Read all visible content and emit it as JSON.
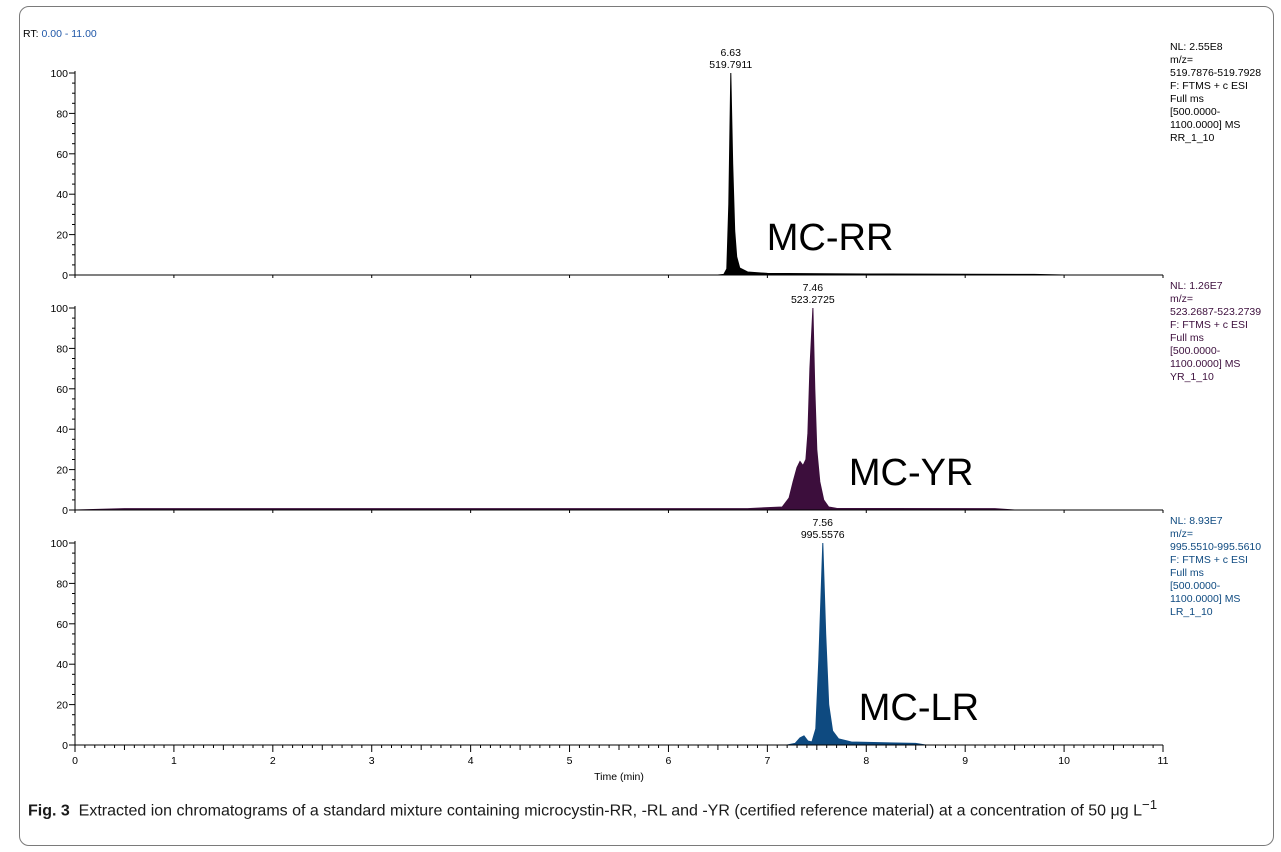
{
  "chart_data": {
    "type": "area",
    "rt_label": "RT:",
    "rt_range": "0.00 - 11.00",
    "xlabel": "Time (min)",
    "xlim": [
      0,
      11
    ],
    "x_ticks": [
      "0",
      "1",
      "2",
      "3",
      "4",
      "5",
      "6",
      "7",
      "8",
      "9",
      "10",
      "11"
    ],
    "ylim": [
      0,
      100
    ],
    "y_ticks": [
      "0",
      "20",
      "40",
      "60",
      "80",
      "100"
    ],
    "panels": [
      {
        "label": "MC-RR",
        "color": "#000000",
        "peak_rt": "6.63",
        "peak_mz": "519.7911",
        "info": [
          "NL: 2.55E8",
          "m/z=",
          "519.7876-519.7928",
          "F: FTMS + c ESI",
          "Full ms",
          "[500.0000-",
          "1100.0000]  MS",
          "RR_1_10"
        ],
        "trace": [
          [
            0,
            0
          ],
          [
            6.5,
            0
          ],
          [
            6.56,
            0.3
          ],
          [
            6.59,
            3
          ],
          [
            6.61,
            35
          ],
          [
            6.63,
            100
          ],
          [
            6.65,
            55
          ],
          [
            6.67,
            22
          ],
          [
            6.69,
            9
          ],
          [
            6.72,
            3.5
          ],
          [
            6.8,
            1.5
          ],
          [
            7.0,
            0.8
          ],
          [
            8.0,
            0.5
          ],
          [
            9.0,
            0.4
          ],
          [
            9.7,
            0.3
          ],
          [
            10.0,
            0
          ],
          [
            11,
            0
          ]
        ]
      },
      {
        "label": "MC-YR",
        "color": "#3c0e3c",
        "peak_rt": "7.46",
        "peak_mz": "523.2725",
        "info": [
          "NL: 1.26E7",
          "m/z=",
          "523.2687-523.2739",
          "F: FTMS + c ESI",
          "Full ms",
          "[500.0000-",
          "1100.0000]  MS",
          "YR_1_10"
        ],
        "trace": [
          [
            0,
            0
          ],
          [
            0.5,
            0.7
          ],
          [
            6.8,
            0.7
          ],
          [
            7.15,
            1.5
          ],
          [
            7.22,
            6
          ],
          [
            7.26,
            14
          ],
          [
            7.3,
            21
          ],
          [
            7.33,
            24
          ],
          [
            7.36,
            22
          ],
          [
            7.39,
            25
          ],
          [
            7.41,
            38
          ],
          [
            7.43,
            70
          ],
          [
            7.46,
            100
          ],
          [
            7.48,
            60
          ],
          [
            7.5,
            30
          ],
          [
            7.53,
            14
          ],
          [
            7.57,
            5
          ],
          [
            7.62,
            1.5
          ],
          [
            7.7,
            0.8
          ],
          [
            9.3,
            0.7
          ],
          [
            9.5,
            0
          ],
          [
            11,
            0
          ]
        ]
      },
      {
        "label": "MC-LR",
        "color": "#0e4a80",
        "peak_rt": "7.56",
        "peak_mz": "995.5576",
        "info": [
          "NL: 8.93E7",
          "m/z=",
          "995.5510-995.5610",
          "F: FTMS + c ESI",
          "Full ms",
          "[500.0000-",
          "1100.0000]  MS",
          "LR_1_10"
        ],
        "trace": [
          [
            0,
            0
          ],
          [
            7.2,
            0
          ],
          [
            7.28,
            0.8
          ],
          [
            7.33,
            3.5
          ],
          [
            7.37,
            4.5
          ],
          [
            7.41,
            2
          ],
          [
            7.45,
            1.5
          ],
          [
            7.49,
            8
          ],
          [
            7.52,
            42
          ],
          [
            7.56,
            100
          ],
          [
            7.59,
            55
          ],
          [
            7.62,
            20
          ],
          [
            7.66,
            7
          ],
          [
            7.72,
            3
          ],
          [
            7.85,
            1.5
          ],
          [
            8.5,
            0.8
          ],
          [
            8.6,
            0
          ],
          [
            11,
            0
          ]
        ]
      }
    ]
  },
  "caption": {
    "fig_label": "Fig. 3",
    "text_before_sup": "Extracted ion chromatograms of a standard mixture containing microcystin-RR, -RL and -YR (certified reference material) at a concentration of 50 μg L",
    "superscript": "−1"
  }
}
